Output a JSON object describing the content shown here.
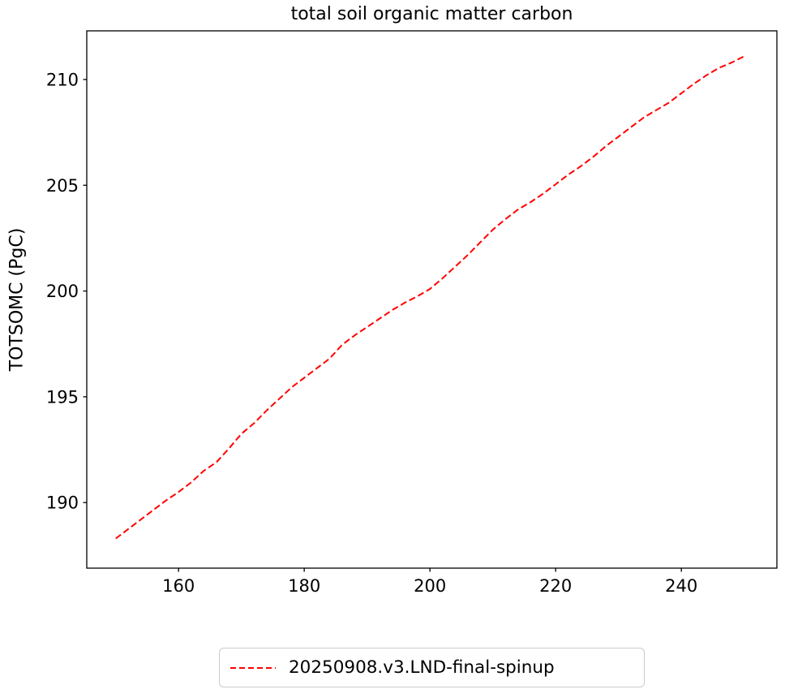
{
  "chart_data": {
    "type": "line",
    "title": "total soil organic matter carbon",
    "xlabel": "",
    "ylabel": "TOTSOMC (PgC)",
    "xlim": [
      145.4,
      255.2
    ],
    "ylim": [
      186.9,
      212.3
    ],
    "xticks": [
      160,
      180,
      200,
      220,
      240
    ],
    "yticks": [
      190,
      195,
      200,
      205,
      210
    ],
    "grid": false,
    "legend_position": "below-axes-center",
    "axes_color": "#000000",
    "legend_border_color": "#cccccc",
    "series": [
      {
        "name": "20250908.v3.LND-final-spinup",
        "color": "#ff0000",
        "line_style": "dashed",
        "x": [
          150,
          152,
          154,
          156,
          158,
          160,
          162,
          164,
          166,
          168,
          170,
          172,
          174,
          176,
          178,
          180,
          182,
          184,
          186,
          188,
          190,
          192,
          194,
          196,
          198,
          200,
          202,
          204,
          206,
          208,
          210,
          212,
          214,
          216,
          218,
          220,
          222,
          224,
          226,
          228,
          230,
          232,
          234,
          236,
          238,
          240,
          242,
          244,
          246,
          248,
          250
        ],
        "y": [
          188.3,
          188.75,
          189.2,
          189.65,
          190.1,
          190.5,
          190.95,
          191.5,
          191.9,
          192.55,
          193.25,
          193.75,
          194.35,
          194.9,
          195.45,
          195.9,
          196.35,
          196.8,
          197.45,
          197.9,
          198.3,
          198.7,
          199.1,
          199.45,
          199.75,
          200.1,
          200.6,
          201.15,
          201.7,
          202.3,
          202.9,
          203.4,
          203.85,
          204.2,
          204.6,
          205.05,
          205.5,
          205.9,
          206.35,
          206.85,
          207.3,
          207.75,
          208.2,
          208.55,
          208.9,
          209.35,
          209.8,
          210.2,
          210.55,
          210.8,
          211.1
        ]
      }
    ]
  }
}
